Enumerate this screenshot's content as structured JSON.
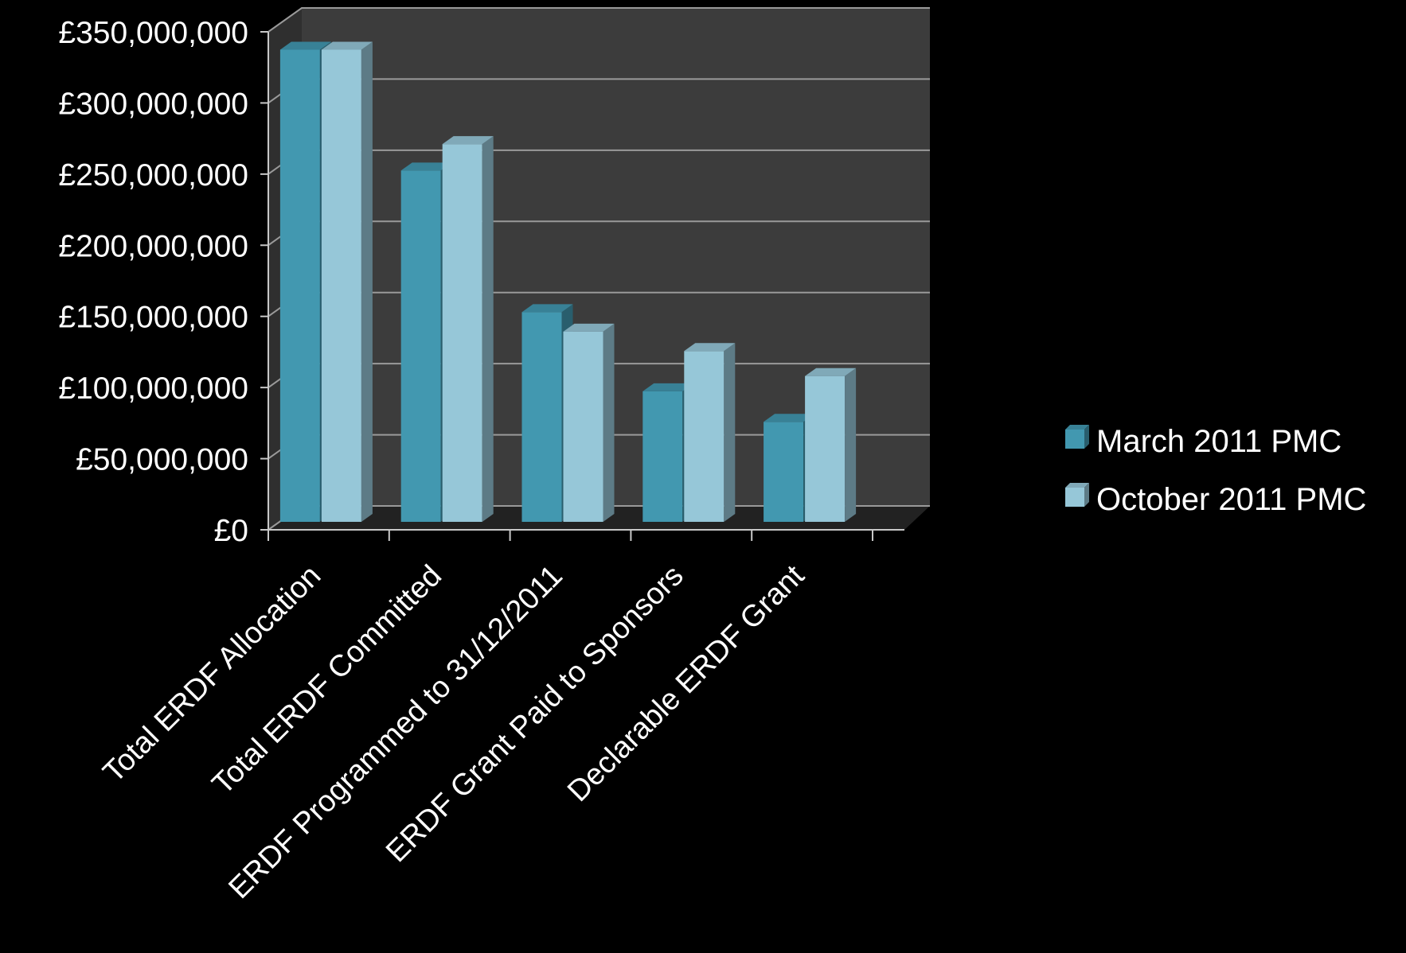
{
  "chart_data": {
    "type": "bar",
    "title": "",
    "xlabel": "",
    "ylabel": "",
    "ylim": [
      0,
      350000000
    ],
    "y_ticks": [
      0,
      50000000,
      100000000,
      150000000,
      200000000,
      250000000,
      300000000,
      350000000
    ],
    "y_tick_labels": [
      "£0",
      "£50,000,000",
      "£100,000,000",
      "£150,000,000",
      "£200,000,000",
      "£250,000,000",
      "£300,000,000",
      "£350,000,000"
    ],
    "categories": [
      "Total ERDF Allocation",
      "Total ERDF Committed",
      "ERDF Programmed to 31/12/2011",
      "ERDF Grant Paid to Sponsors",
      "Declarable ERDF Grant"
    ],
    "series": [
      {
        "name": "March 2011 PMC",
        "values": [
          340000000,
          253000000,
          151000000,
          94000000,
          72000000
        ],
        "color": "#4298b0"
      },
      {
        "name": "October 2011 PMC",
        "values": [
          340000000,
          272000000,
          137000000,
          123000000,
          105000000
        ],
        "color": "#96c7d8"
      }
    ],
    "grid": true,
    "legend_position": "right"
  }
}
